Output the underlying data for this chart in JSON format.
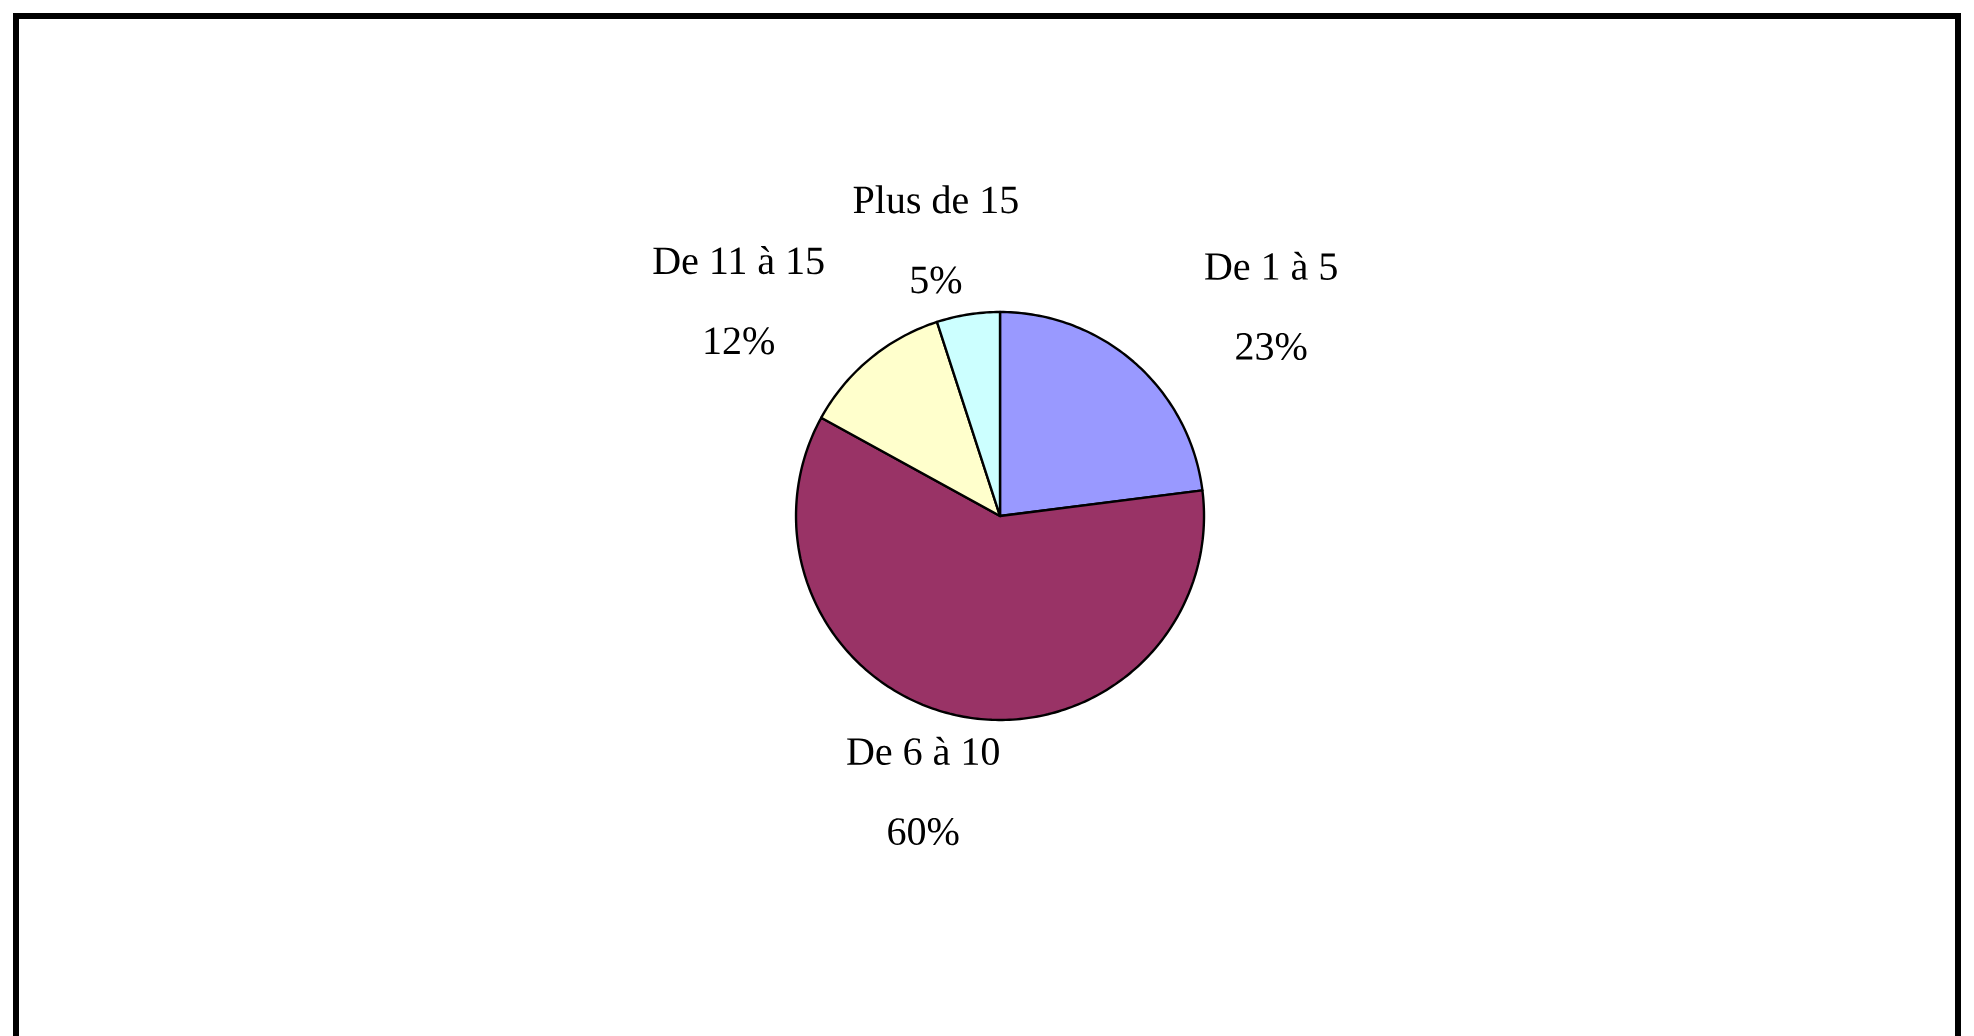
{
  "chart_data": {
    "type": "pie",
    "categories": [
      "De 1 à 5",
      "De 6 à 10",
      "De 11 à 15",
      "Plus de 15"
    ],
    "values": [
      23,
      60,
      12,
      5
    ],
    "colors": [
      "#9999ff",
      "#993366",
      "#ffffcc",
      "#ccffff"
    ],
    "value_labels": [
      "23%",
      "60%",
      "12%",
      "5%"
    ]
  }
}
